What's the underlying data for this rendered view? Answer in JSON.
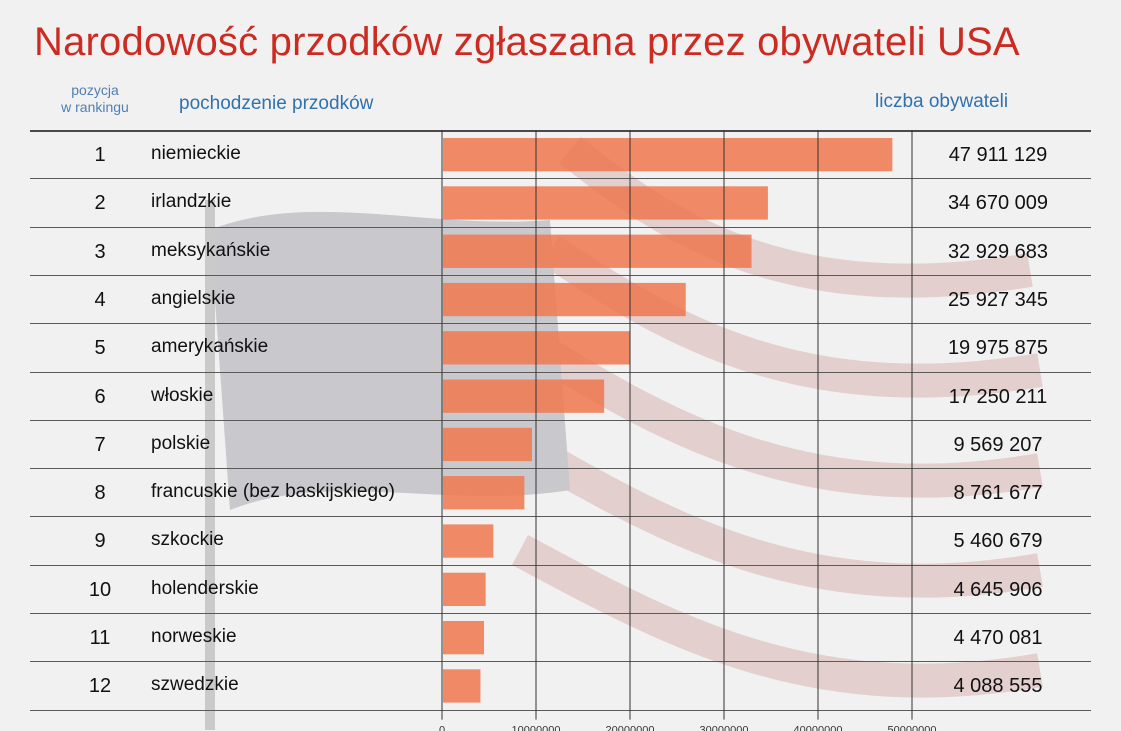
{
  "title": "Narodowość przodków zgłaszana przez obywateli USA",
  "headers": {
    "rank": "pozycja\nw rankingu",
    "origin": "pochodzenie przodków",
    "count": "liczba obywateli"
  },
  "colors": {
    "title": "#cc2b22",
    "header": "#2f72ad",
    "bar": "#ee7a52"
  },
  "chart_data": {
    "type": "bar",
    "orientation": "horizontal",
    "title": "Narodowość przodków zgłaszana przez obywateli USA",
    "categories": [
      "niemieckie",
      "irlandzkie",
      "meksykańskie",
      "angielskie",
      "amerykańskie",
      "włoskie",
      "polskie",
      "francuskie (bez baskijskiego)",
      "szkockie",
      "holenderskie",
      "norweskie",
      "szwedzkie"
    ],
    "ranks": [
      "1",
      "2",
      "3",
      "4",
      "5",
      "6",
      "7",
      "8",
      "9",
      "10",
      "11",
      "12"
    ],
    "values": [
      47911129,
      34670009,
      32929683,
      25927345,
      19975875,
      17250211,
      9569207,
      8761677,
      5460679,
      4645906,
      4470081,
      4088555
    ],
    "value_labels": [
      "47 911 129",
      "34 670 009",
      "32 929 683",
      "25 927 345",
      "19 975 875",
      "17 250 211",
      "9 569 207",
      "8 761 677",
      "5 460 679",
      "4 645 906",
      "4 470 081",
      "4 088 555"
    ],
    "x_ticks": [
      "0",
      "10000000",
      "20000000",
      "30000000",
      "40000000",
      "50000000"
    ],
    "xlim": [
      0,
      50000000
    ],
    "grid": true
  }
}
